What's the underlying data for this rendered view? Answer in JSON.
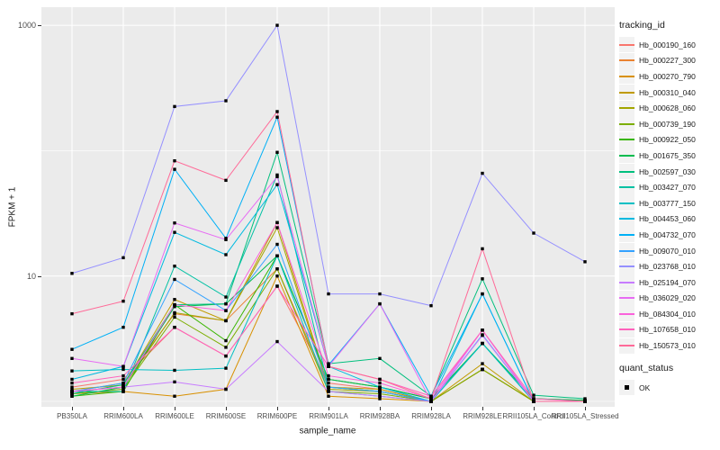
{
  "figure": {
    "bg": "#FFFFFF",
    "panel_bg": "#EBEBEB",
    "grid_major_color": "#FFFFFF",
    "grid_minor_color": "#FFFFFF",
    "axis_text_color": "#4D4D4D",
    "point_color": "#000000"
  },
  "axes": {
    "y_title": "FPKM + 1",
    "x_title": "sample_name",
    "y_ticks": [
      {
        "label": "1000",
        "value": 1000
      },
      {
        "label": "10",
        "value": 10
      }
    ],
    "y_minor_values": [
      1,
      100
    ]
  },
  "legend": {
    "tracking_title": "tracking_id",
    "quant_title": "quant_status",
    "quant_items": [
      {
        "label": "OK"
      }
    ]
  },
  "chart_data": {
    "type": "line",
    "title": "",
    "xlabel": "sample_name",
    "ylabel": "FPKM + 1",
    "y_scale": "log10",
    "ylim": [
      1,
      1100
    ],
    "grid": true,
    "legend_position": "right",
    "point_shape": "square",
    "point_color": "#000000",
    "quant_status": "OK",
    "x_categories": [
      "PB350LA",
      "RRIM600LA",
      "RRIM600LE",
      "RRIM600SE",
      "RRIM600PE",
      "RRIM901LA",
      "RRIM928BA",
      "RRIM928LA",
      "RRIM928LE",
      "RRII105LA_Control",
      "RRII105LA_Stressed"
    ],
    "series": [
      {
        "name": "Hb_000190_160",
        "color": "#F8766D",
        "values": [
          1.3,
          1.5,
          3.9,
          2.3,
          8.3,
          1.4,
          1.25,
          1.0,
          1.8,
          1.0,
          1.0
        ]
      },
      {
        "name": "Hb_000227_300",
        "color": "#EA8331",
        "values": [
          1.2,
          1.4,
          5.0,
          4.4,
          11.4,
          1.3,
          1.2,
          1.0,
          1.8,
          1.0,
          1.0
        ]
      },
      {
        "name": "Hb_000270_790",
        "color": "#D89000",
        "values": [
          1.15,
          1.2,
          1.1,
          1.25,
          10.0,
          1.1,
          1.05,
          1.0,
          1.8,
          1.0,
          1.0
        ]
      },
      {
        "name": "Hb_000310_040",
        "color": "#C09B00",
        "values": [
          1.25,
          1.35,
          6.5,
          4.4,
          26.7,
          1.3,
          1.25,
          1.0,
          2.0,
          1.0,
          1.0
        ]
      },
      {
        "name": "Hb_000628_060",
        "color": "#A3A500",
        "values": [
          1.2,
          1.3,
          5.1,
          4.4,
          24.3,
          1.25,
          1.2,
          1.0,
          1.8,
          1.0,
          1.0
        ]
      },
      {
        "name": "Hb_000739_190",
        "color": "#7CAE00",
        "values": [
          1.15,
          1.25,
          4.7,
          2.7,
          11.4,
          1.2,
          1.15,
          1.0,
          1.8,
          1.0,
          1.0
        ]
      },
      {
        "name": "Hb_000922_050",
        "color": "#39B600",
        "values": [
          1.1,
          1.2,
          5.9,
          3.05,
          14.5,
          1.5,
          1.3,
          1.05,
          2.9,
          1.05,
          1.02
        ]
      },
      {
        "name": "Hb_001675_350",
        "color": "#00BB4E",
        "values": [
          1.1,
          1.3,
          5.7,
          6.0,
          14.5,
          1.5,
          1.3,
          1.05,
          2.9,
          1.05,
          1.02
        ]
      },
      {
        "name": "Hb_002597_030",
        "color": "#00BF7D",
        "values": [
          1.15,
          1.36,
          5.9,
          6.0,
          97.0,
          2.0,
          2.2,
          1.1,
          9.5,
          1.12,
          1.05
        ]
      },
      {
        "name": "Hb_003427_070",
        "color": "#00C1A3",
        "values": [
          1.2,
          1.2,
          12.0,
          6.8,
          64.0,
          1.3,
          1.2,
          1.0,
          2.9,
          1.0,
          1.0
        ]
      },
      {
        "name": "Hb_003777_150",
        "color": "#00BFC4",
        "values": [
          1.75,
          1.8,
          1.77,
          1.84,
          14.5,
          1.2,
          1.1,
          1.0,
          2.9,
          1.0,
          1.0
        ]
      },
      {
        "name": "Hb_004453_060",
        "color": "#00BAE0",
        "values": [
          1.5,
          1.9,
          22.3,
          14.8,
          53.6,
          1.9,
          1.3,
          1.0,
          7.2,
          1.0,
          1.0
        ]
      },
      {
        "name": "Hb_004732_070",
        "color": "#00B0F6",
        "values": [
          2.6,
          3.9,
          71.0,
          20.0,
          185.0,
          1.95,
          6.0,
          1.1,
          7.2,
          1.0,
          1.0
        ]
      },
      {
        "name": "Hb_009070_010",
        "color": "#35A2FF",
        "values": [
          1.2,
          1.4,
          9.4,
          5.3,
          17.9,
          1.3,
          1.2,
          1.0,
          3.4,
          1.0,
          1.0
        ]
      },
      {
        "name": "Hb_023768_010",
        "color": "#9590FF",
        "values": [
          10.5,
          14.0,
          225.0,
          250.0,
          1000.0,
          7.2,
          7.2,
          5.8,
          66.0,
          22.0,
          13.0
        ]
      },
      {
        "name": "Hb_025194_070",
        "color": "#C77CFF",
        "values": [
          1.2,
          1.3,
          1.43,
          1.25,
          3.0,
          1.2,
          1.1,
          1.0,
          3.36,
          1.0,
          1.0
        ]
      },
      {
        "name": "Hb_036029_020",
        "color": "#E76BF3",
        "values": [
          2.2,
          1.9,
          26.5,
          19.5,
          62.0,
          1.9,
          6.0,
          1.0,
          3.7,
          1.0,
          1.0
        ]
      },
      {
        "name": "Hb_084304_010",
        "color": "#FA62DB",
        "values": [
          1.2,
          1.3,
          5.9,
          5.3,
          26.7,
          1.6,
          1.4,
          1.05,
          3.7,
          1.0,
          1.0
        ]
      },
      {
        "name": "Hb_107658_010",
        "color": "#FF62BC",
        "values": [
          1.4,
          1.6,
          3.9,
          2.3,
          8.3,
          1.9,
          1.5,
          1.1,
          3.7,
          1.05,
          1.0
        ]
      },
      {
        "name": "Hb_150573_010",
        "color": "#FF6A98",
        "values": [
          5.0,
          6.3,
          83.0,
          58.0,
          205.0,
          1.9,
          1.5,
          1.05,
          16.5,
          1.0,
          1.0
        ]
      }
    ]
  }
}
